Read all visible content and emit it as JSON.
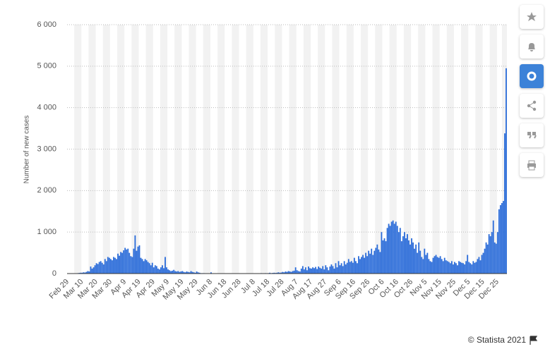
{
  "chart_data": {
    "type": "bar",
    "y_label": "Number of new cases",
    "credit": "© Statista 2021",
    "color": "#2b6cd9",
    "grid": true,
    "ylim": [
      0,
      6000
    ],
    "yticks": [
      0,
      {
        "value": 1000,
        "label": "1 000"
      },
      {
        "value": 2000,
        "label": "2 000"
      },
      {
        "value": 3000,
        "label": "3 000"
      },
      {
        "value": 4000,
        "label": "4 000"
      },
      {
        "value": 5000,
        "label": "5 000"
      },
      {
        "value": 6000,
        "label": "6 000"
      }
    ],
    "categories": [
      "Feb 29",
      null,
      null,
      null,
      null,
      null,
      null,
      null,
      null,
      null,
      "Mar 10",
      null,
      null,
      null,
      null,
      null,
      null,
      null,
      null,
      null,
      "Mar 20",
      null,
      null,
      null,
      null,
      null,
      null,
      null,
      null,
      null,
      "Mar 30",
      null,
      null,
      null,
      null,
      null,
      null,
      null,
      null,
      null,
      "Apr 9",
      null,
      null,
      null,
      null,
      null,
      null,
      null,
      null,
      null,
      "Apr 19",
      null,
      null,
      null,
      null,
      null,
      null,
      null,
      null,
      null,
      "Apr 29",
      null,
      null,
      null,
      null,
      null,
      null,
      null,
      null,
      null,
      "May 9",
      null,
      null,
      null,
      null,
      null,
      null,
      null,
      null,
      null,
      "May 19",
      null,
      null,
      null,
      null,
      null,
      null,
      null,
      null,
      null,
      "May 29",
      null,
      null,
      null,
      null,
      null,
      null,
      null,
      null,
      null,
      "Jun 8",
      null,
      null,
      null,
      null,
      null,
      null,
      null,
      null,
      null,
      "Jun 18",
      null,
      null,
      null,
      null,
      null,
      null,
      null,
      null,
      null,
      "Jun 28",
      null,
      null,
      null,
      null,
      null,
      null,
      null,
      null,
      null,
      "Jul 8",
      null,
      null,
      null,
      null,
      null,
      null,
      null,
      null,
      null,
      "Jul 18",
      null,
      null,
      null,
      null,
      null,
      null,
      null,
      null,
      null,
      "Jul 28",
      null,
      null,
      null,
      null,
      null,
      null,
      null,
      null,
      null,
      "Aug 7",
      null,
      null,
      null,
      null,
      null,
      null,
      null,
      null,
      null,
      "Aug 17",
      null,
      null,
      null,
      null,
      null,
      null,
      null,
      null,
      null,
      "Aug 27",
      null,
      null,
      null,
      null,
      null,
      null,
      null,
      null,
      null,
      "Sep 6",
      null,
      null,
      null,
      null,
      null,
      null,
      null,
      null,
      null,
      "Sep 16",
      null,
      null,
      null,
      null,
      null,
      null,
      null,
      null,
      null,
      "Sep 26",
      null,
      null,
      null,
      null,
      null,
      null,
      null,
      null,
      null,
      "Oct 6",
      null,
      null,
      null,
      null,
      null,
      null,
      null,
      null,
      null,
      "Oct 16",
      null,
      null,
      null,
      null,
      null,
      null,
      null,
      null,
      null,
      "Oct 26",
      null,
      null,
      null,
      null,
      null,
      null,
      null,
      null,
      null,
      "Nov 5",
      null,
      null,
      null,
      null,
      null,
      null,
      null,
      null,
      null,
      "Nov 15",
      null,
      null,
      null,
      null,
      null,
      null,
      null,
      null,
      null,
      "Nov 25",
      null,
      null,
      null,
      null,
      null,
      null,
      null,
      null,
      null,
      "Dec 5",
      null,
      null,
      null,
      null,
      null,
      null,
      null,
      null,
      null,
      "Dec 15",
      null,
      null,
      null,
      null,
      null,
      null,
      null,
      null,
      null,
      "Dec 25",
      null,
      null,
      null,
      null,
      null,
      null
    ],
    "values": [
      0,
      0,
      0,
      0,
      0,
      2,
      5,
      10,
      15,
      20,
      20,
      30,
      25,
      40,
      60,
      50,
      170,
      120,
      150,
      200,
      250,
      230,
      280,
      300,
      260,
      220,
      350,
      300,
      400,
      380,
      350,
      320,
      400,
      380,
      350,
      480,
      430,
      520,
      500,
      560,
      620,
      580,
      600,
      500,
      420,
      400,
      600,
      920,
      550,
      650,
      680,
      380,
      350,
      300,
      350,
      320,
      280,
      250,
      200,
      260,
      150,
      200,
      180,
      120,
      100,
      150,
      200,
      130,
      400,
      150,
      100,
      80,
      60,
      70,
      90,
      60,
      50,
      60,
      40,
      50,
      60,
      40,
      30,
      50,
      40,
      30,
      60,
      40,
      30,
      20,
      50,
      30,
      20,
      10,
      10,
      10,
      5,
      5,
      5,
      5,
      30,
      5,
      5,
      5,
      5,
      5,
      5,
      5,
      5,
      5,
      5,
      5,
      5,
      5,
      5,
      5,
      5,
      5,
      5,
      5,
      5,
      5,
      5,
      5,
      5,
      5,
      5,
      5,
      5,
      5,
      5,
      5,
      5,
      5,
      5,
      10,
      5,
      5,
      10,
      5,
      10,
      20,
      10,
      15,
      20,
      15,
      20,
      30,
      20,
      25,
      40,
      30,
      50,
      40,
      60,
      50,
      40,
      60,
      70,
      150,
      80,
      60,
      50,
      120,
      180,
      100,
      150,
      80,
      170,
      130,
      120,
      150,
      130,
      160,
      110,
      170,
      140,
      120,
      180,
      100,
      200,
      150,
      80,
      170,
      220,
      180,
      120,
      250,
      150,
      300,
      200,
      250,
      180,
      300,
      220,
      260,
      350,
      280,
      300,
      260,
      380,
      300,
      250,
      420,
      350,
      400,
      450,
      380,
      500,
      420,
      550,
      480,
      600,
      450,
      550,
      620,
      700,
      580,
      520,
      1000,
      800,
      850,
      780,
      1100,
      1200,
      1150,
      1250,
      1280,
      1200,
      1250,
      1150,
      1000,
      1100,
      780,
      900,
      1000,
      850,
      950,
      800,
      700,
      850,
      750,
      600,
      700,
      500,
      750,
      550,
      400,
      350,
      600,
      450,
      500,
      350,
      300,
      280,
      380,
      420,
      450,
      400,
      380,
      420,
      350,
      300,
      380,
      320,
      300,
      280,
      250,
      300,
      220,
      280,
      250,
      200,
      300,
      280,
      260,
      250,
      220,
      300,
      450,
      280,
      250,
      220,
      300,
      260,
      280,
      350,
      400,
      320,
      450,
      500,
      600,
      750,
      700,
      950,
      900,
      1000,
      1280,
      750,
      720,
      1000,
      1550,
      1650,
      1700,
      1750,
      3380,
      4950
    ]
  }
}
